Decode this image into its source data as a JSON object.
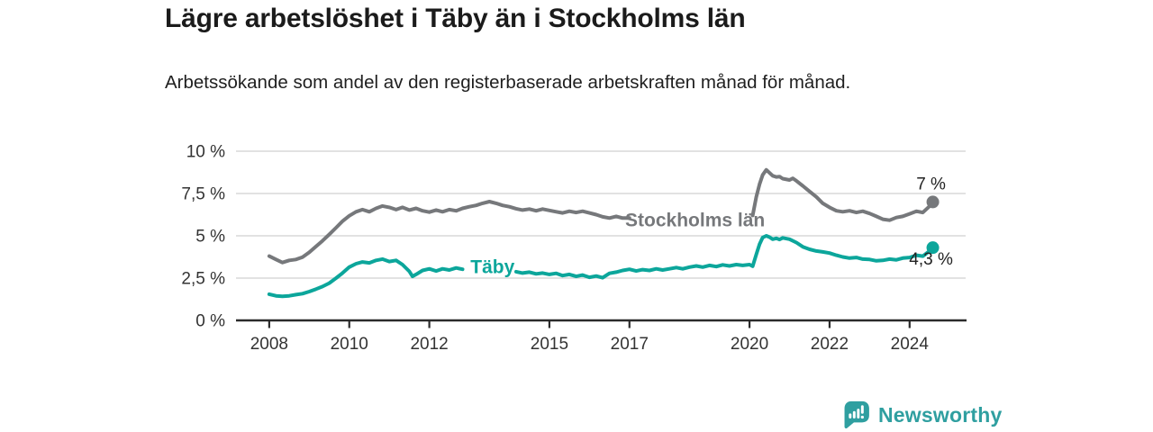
{
  "title": "Lägre arbetslöshet i Täby än i Stockholms län",
  "subtitle": "Arbetssökande som andel av den registerbaserade arbetskraften månad för månad.",
  "branding": {
    "logo_text": "Newsworthy",
    "logo_icon": "bar-chart-speech-bubble-icon",
    "color": "#2f9fa0"
  },
  "colors": {
    "taby_line": "#0ca69b",
    "stockholm_line": "#76787b",
    "axis": "#2b2b2b",
    "grid": "#d9d9d9",
    "tick_text": "#333333",
    "end_label_text": "#222222",
    "title_text": "#1b1b1b"
  },
  "chart_data": {
    "type": "line",
    "title": "Lägre arbetslöshet i Täby än i Stockholms län",
    "subtitle": "Arbetssökande som andel av den registerbaserade arbetskraften månad för månad.",
    "xlabel": "",
    "ylabel": "",
    "grid": true,
    "legend_position": "inline",
    "ylim": [
      0,
      10
    ],
    "xlim": [
      2007.17,
      2025.4
    ],
    "y_ticks": [
      {
        "value": 10,
        "label": "10 %"
      },
      {
        "value": 7.5,
        "label": "7,5 %"
      },
      {
        "value": 5,
        "label": "5 %"
      },
      {
        "value": 2.5,
        "label": "2,5 %"
      },
      {
        "value": 0,
        "label": "0 %"
      }
    ],
    "x_ticks": [
      {
        "value": 2008,
        "label": "2008"
      },
      {
        "value": 2010,
        "label": "2010"
      },
      {
        "value": 2012,
        "label": "2012"
      },
      {
        "value": 2015,
        "label": "2015"
      },
      {
        "value": 2017,
        "label": "2017"
      },
      {
        "value": 2020,
        "label": "2020"
      },
      {
        "value": 2022,
        "label": "2022"
      },
      {
        "value": 2024,
        "label": "2024"
      }
    ],
    "series": [
      {
        "id": "stockholms-lan",
        "name": "Stockholms län",
        "color": "#76787b",
        "end_label": "7 %",
        "end_value": 7.0,
        "end_label_position": "above",
        "inline_label": {
          "text": "Stockholms län",
          "x": 2018.64,
          "y": 5.96
        },
        "label_gap_x": [
          2017.1,
          2020.06
        ],
        "points": [
          [
            2008.0,
            3.8
          ],
          [
            2008.17,
            3.6
          ],
          [
            2008.33,
            3.42
          ],
          [
            2008.5,
            3.55
          ],
          [
            2008.67,
            3.6
          ],
          [
            2008.83,
            3.74
          ],
          [
            2009.0,
            4.02
          ],
          [
            2009.17,
            4.38
          ],
          [
            2009.33,
            4.7
          ],
          [
            2009.5,
            5.08
          ],
          [
            2009.67,
            5.48
          ],
          [
            2009.83,
            5.86
          ],
          [
            2010.0,
            6.18
          ],
          [
            2010.17,
            6.42
          ],
          [
            2010.33,
            6.55
          ],
          [
            2010.5,
            6.42
          ],
          [
            2010.67,
            6.62
          ],
          [
            2010.83,
            6.76
          ],
          [
            2011.0,
            6.68
          ],
          [
            2011.17,
            6.55
          ],
          [
            2011.33,
            6.68
          ],
          [
            2011.5,
            6.52
          ],
          [
            2011.67,
            6.62
          ],
          [
            2011.83,
            6.48
          ],
          [
            2012.0,
            6.4
          ],
          [
            2012.17,
            6.52
          ],
          [
            2012.33,
            6.42
          ],
          [
            2012.5,
            6.55
          ],
          [
            2012.67,
            6.48
          ],
          [
            2012.83,
            6.62
          ],
          [
            2013.0,
            6.72
          ],
          [
            2013.17,
            6.8
          ],
          [
            2013.33,
            6.92
          ],
          [
            2013.5,
            7.02
          ],
          [
            2013.67,
            6.92
          ],
          [
            2013.83,
            6.8
          ],
          [
            2014.0,
            6.72
          ],
          [
            2014.17,
            6.6
          ],
          [
            2014.33,
            6.52
          ],
          [
            2014.5,
            6.58
          ],
          [
            2014.67,
            6.48
          ],
          [
            2014.83,
            6.58
          ],
          [
            2015.0,
            6.5
          ],
          [
            2015.17,
            6.42
          ],
          [
            2015.33,
            6.35
          ],
          [
            2015.5,
            6.45
          ],
          [
            2015.67,
            6.38
          ],
          [
            2015.83,
            6.45
          ],
          [
            2016.0,
            6.35
          ],
          [
            2016.17,
            6.25
          ],
          [
            2016.33,
            6.12
          ],
          [
            2016.5,
            6.05
          ],
          [
            2016.67,
            6.15
          ],
          [
            2016.83,
            6.05
          ],
          [
            2017.0,
            6.05
          ],
          [
            2020.08,
            6.2
          ],
          [
            2020.17,
            7.3
          ],
          [
            2020.25,
            8.05
          ],
          [
            2020.33,
            8.6
          ],
          [
            2020.42,
            8.9
          ],
          [
            2020.5,
            8.72
          ],
          [
            2020.58,
            8.55
          ],
          [
            2020.67,
            8.48
          ],
          [
            2020.75,
            8.5
          ],
          [
            2020.83,
            8.38
          ],
          [
            2021.0,
            8.3
          ],
          [
            2021.08,
            8.4
          ],
          [
            2021.17,
            8.25
          ],
          [
            2021.33,
            7.95
          ],
          [
            2021.5,
            7.62
          ],
          [
            2021.67,
            7.3
          ],
          [
            2021.83,
            6.92
          ],
          [
            2022.0,
            6.68
          ],
          [
            2022.17,
            6.48
          ],
          [
            2022.33,
            6.42
          ],
          [
            2022.5,
            6.48
          ],
          [
            2022.67,
            6.38
          ],
          [
            2022.83,
            6.45
          ],
          [
            2023.0,
            6.32
          ],
          [
            2023.17,
            6.15
          ],
          [
            2023.33,
            5.98
          ],
          [
            2023.5,
            5.92
          ],
          [
            2023.67,
            6.08
          ],
          [
            2023.83,
            6.15
          ],
          [
            2024.0,
            6.3
          ],
          [
            2024.17,
            6.45
          ],
          [
            2024.33,
            6.38
          ],
          [
            2024.5,
            6.75
          ],
          [
            2024.58,
            7.0
          ]
        ]
      },
      {
        "id": "taby",
        "name": "Täby",
        "color": "#0ca69b",
        "end_label": "4,3 %",
        "end_value": 4.3,
        "end_label_position": "below",
        "inline_label": {
          "text": "Täby",
          "x": 2013.58,
          "y": 3.19
        },
        "label_gap_x": [
          2012.9,
          2014.1
        ],
        "points": [
          [
            2008.0,
            1.55
          ],
          [
            2008.17,
            1.45
          ],
          [
            2008.33,
            1.42
          ],
          [
            2008.5,
            1.45
          ],
          [
            2008.67,
            1.52
          ],
          [
            2008.83,
            1.58
          ],
          [
            2009.0,
            1.7
          ],
          [
            2009.17,
            1.85
          ],
          [
            2009.33,
            2.0
          ],
          [
            2009.5,
            2.2
          ],
          [
            2009.67,
            2.5
          ],
          [
            2009.83,
            2.8
          ],
          [
            2010.0,
            3.15
          ],
          [
            2010.17,
            3.35
          ],
          [
            2010.33,
            3.45
          ],
          [
            2010.5,
            3.4
          ],
          [
            2010.67,
            3.55
          ],
          [
            2010.83,
            3.62
          ],
          [
            2011.0,
            3.48
          ],
          [
            2011.17,
            3.55
          ],
          [
            2011.33,
            3.3
          ],
          [
            2011.5,
            2.9
          ],
          [
            2011.58,
            2.6
          ],
          [
            2011.67,
            2.72
          ],
          [
            2011.83,
            2.95
          ],
          [
            2012.0,
            3.05
          ],
          [
            2012.17,
            2.92
          ],
          [
            2012.33,
            3.05
          ],
          [
            2012.5,
            2.98
          ],
          [
            2012.67,
            3.1
          ],
          [
            2012.83,
            3.02
          ],
          [
            2014.17,
            2.88
          ],
          [
            2014.33,
            2.8
          ],
          [
            2014.5,
            2.85
          ],
          [
            2014.67,
            2.75
          ],
          [
            2014.83,
            2.8
          ],
          [
            2015.0,
            2.72
          ],
          [
            2015.17,
            2.78
          ],
          [
            2015.33,
            2.65
          ],
          [
            2015.5,
            2.72
          ],
          [
            2015.67,
            2.6
          ],
          [
            2015.83,
            2.68
          ],
          [
            2016.0,
            2.55
          ],
          [
            2016.17,
            2.62
          ],
          [
            2016.33,
            2.52
          ],
          [
            2016.5,
            2.78
          ],
          [
            2016.67,
            2.85
          ],
          [
            2016.83,
            2.95
          ],
          [
            2017.0,
            3.02
          ],
          [
            2017.17,
            2.92
          ],
          [
            2017.33,
            3.0
          ],
          [
            2017.5,
            2.95
          ],
          [
            2017.67,
            3.05
          ],
          [
            2017.83,
            2.98
          ],
          [
            2018.0,
            3.05
          ],
          [
            2018.17,
            3.12
          ],
          [
            2018.33,
            3.05
          ],
          [
            2018.5,
            3.15
          ],
          [
            2018.67,
            3.22
          ],
          [
            2018.83,
            3.15
          ],
          [
            2019.0,
            3.25
          ],
          [
            2019.17,
            3.18
          ],
          [
            2019.33,
            3.28
          ],
          [
            2019.5,
            3.22
          ],
          [
            2019.67,
            3.3
          ],
          [
            2019.83,
            3.25
          ],
          [
            2020.0,
            3.3
          ],
          [
            2020.08,
            3.2
          ],
          [
            2020.17,
            3.9
          ],
          [
            2020.25,
            4.5
          ],
          [
            2020.33,
            4.9
          ],
          [
            2020.42,
            5.0
          ],
          [
            2020.5,
            4.92
          ],
          [
            2020.58,
            4.8
          ],
          [
            2020.67,
            4.85
          ],
          [
            2020.75,
            4.78
          ],
          [
            2020.83,
            4.88
          ],
          [
            2021.0,
            4.8
          ],
          [
            2021.17,
            4.6
          ],
          [
            2021.33,
            4.35
          ],
          [
            2021.5,
            4.2
          ],
          [
            2021.67,
            4.1
          ],
          [
            2021.83,
            4.05
          ],
          [
            2022.0,
            3.98
          ],
          [
            2022.17,
            3.85
          ],
          [
            2022.33,
            3.75
          ],
          [
            2022.5,
            3.68
          ],
          [
            2022.67,
            3.72
          ],
          [
            2022.83,
            3.62
          ],
          [
            2023.0,
            3.6
          ],
          [
            2023.17,
            3.52
          ],
          [
            2023.33,
            3.55
          ],
          [
            2023.5,
            3.62
          ],
          [
            2023.67,
            3.58
          ],
          [
            2023.83,
            3.68
          ],
          [
            2024.0,
            3.72
          ],
          [
            2024.17,
            3.85
          ],
          [
            2024.33,
            3.8
          ],
          [
            2024.5,
            4.1
          ],
          [
            2024.58,
            4.3
          ]
        ]
      }
    ]
  }
}
